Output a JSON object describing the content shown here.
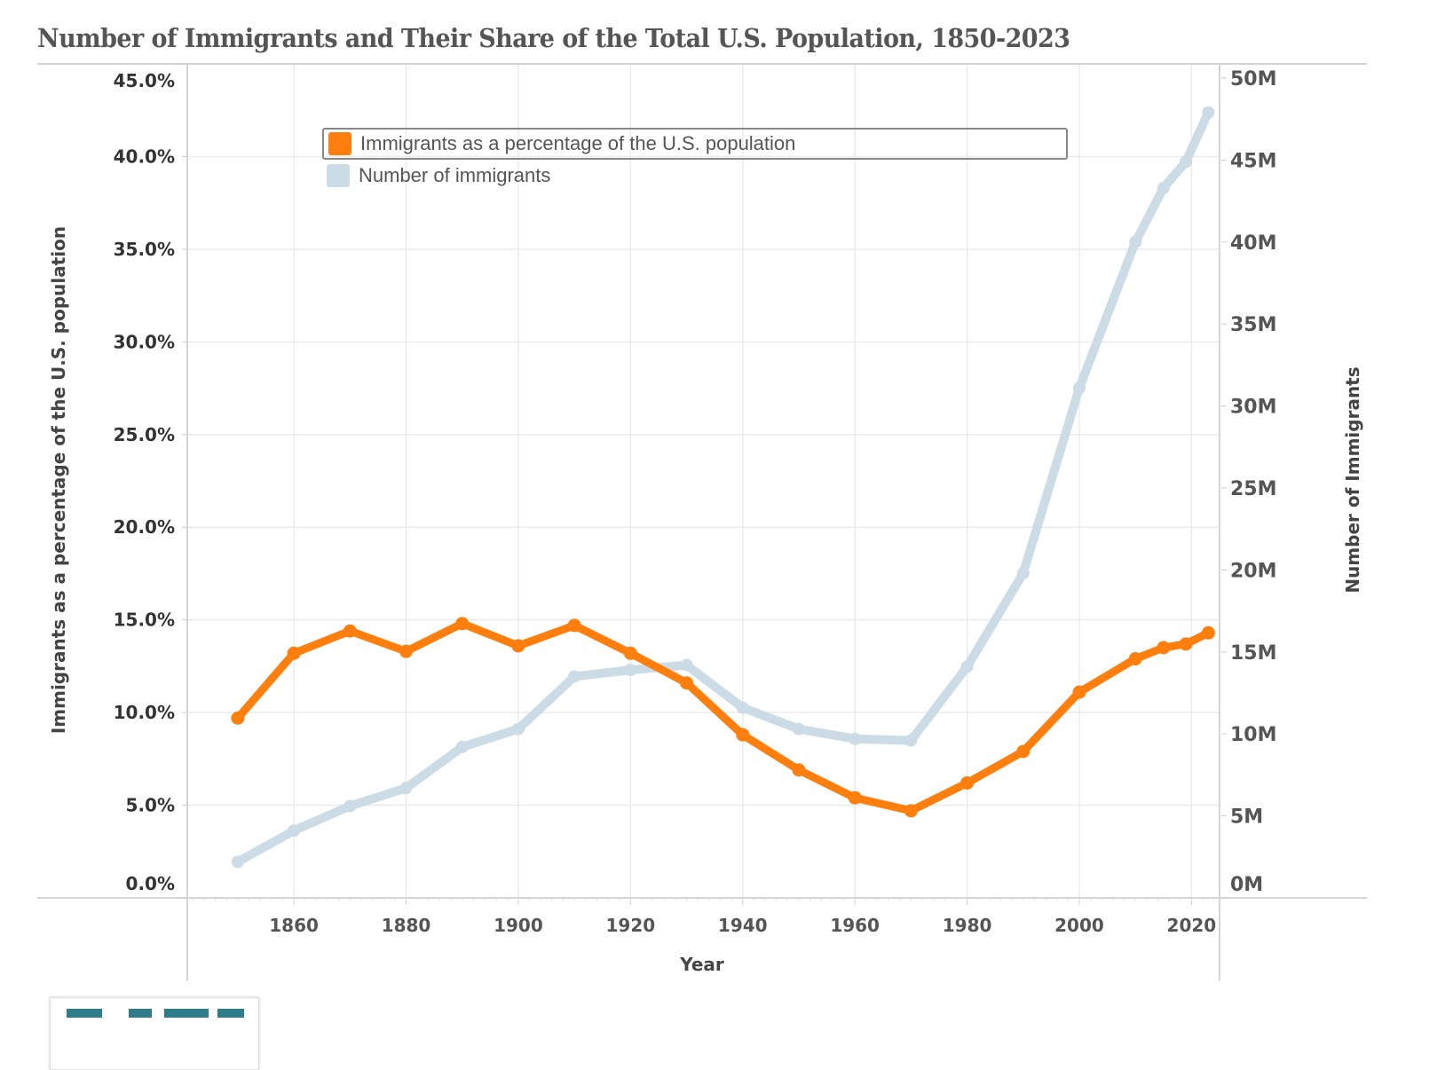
{
  "chart_data": {
    "type": "line",
    "title": "Number of Immigrants and Their Share of the Total U.S. Population, 1850-2023",
    "xlabel": "Year",
    "ylabel_left": "Immigrants as a percentage of the U.S. population",
    "ylabel_right": "Number of Immigrants",
    "x": [
      1850,
      1860,
      1870,
      1880,
      1890,
      1900,
      1910,
      1920,
      1930,
      1940,
      1950,
      1960,
      1970,
      1980,
      1990,
      2000,
      2010,
      2015,
      2019,
      2023
    ],
    "x_ticks": [
      "1860",
      "1880",
      "1900",
      "1920",
      "1940",
      "1960",
      "1980",
      "2000",
      "2020"
    ],
    "x_range": [
      1841,
      2025
    ],
    "y_left_ticks": [
      "0.0%",
      "5.0%",
      "10.0%",
      "15.0%",
      "20.0%",
      "25.0%",
      "30.0%",
      "35.0%",
      "40.0%",
      "45.0%"
    ],
    "y_left_range": [
      0,
      45
    ],
    "y_right_ticks": [
      "0M",
      "5M",
      "10M",
      "15M",
      "20M",
      "25M",
      "30M",
      "35M",
      "40M",
      "45M",
      "50M"
    ],
    "y_right_range": [
      0,
      50
    ],
    "grid": true,
    "legend_position": "top-left",
    "series": [
      {
        "name": "Immigrants as a percentage of the U.S. population",
        "axis": "left",
        "unit": "%",
        "color": "#FF7F0E",
        "values": [
          9.7,
          13.2,
          14.4,
          13.3,
          14.8,
          13.6,
          14.7,
          13.2,
          11.6,
          8.8,
          6.9,
          5.4,
          4.7,
          6.2,
          7.9,
          11.1,
          12.9,
          13.5,
          13.7,
          14.3
        ]
      },
      {
        "name": "Number of immigrants",
        "axis": "right",
        "unit": "millions",
        "color": "#CBDCE6",
        "values": [
          2.2,
          4.1,
          5.6,
          6.7,
          9.2,
          10.3,
          13.5,
          13.9,
          14.2,
          11.6,
          10.3,
          9.7,
          9.6,
          14.1,
          19.8,
          31.1,
          40.0,
          43.3,
          44.9,
          47.9
        ]
      }
    ]
  },
  "legend": {
    "items": [
      {
        "label": "Immigrants as a percentage of the U.S. population",
        "color": "#FF7F0E"
      },
      {
        "label": "Number of immigrants",
        "color": "#CBDCE6"
      }
    ]
  },
  "logo": {
    "name": "organization-logo"
  }
}
